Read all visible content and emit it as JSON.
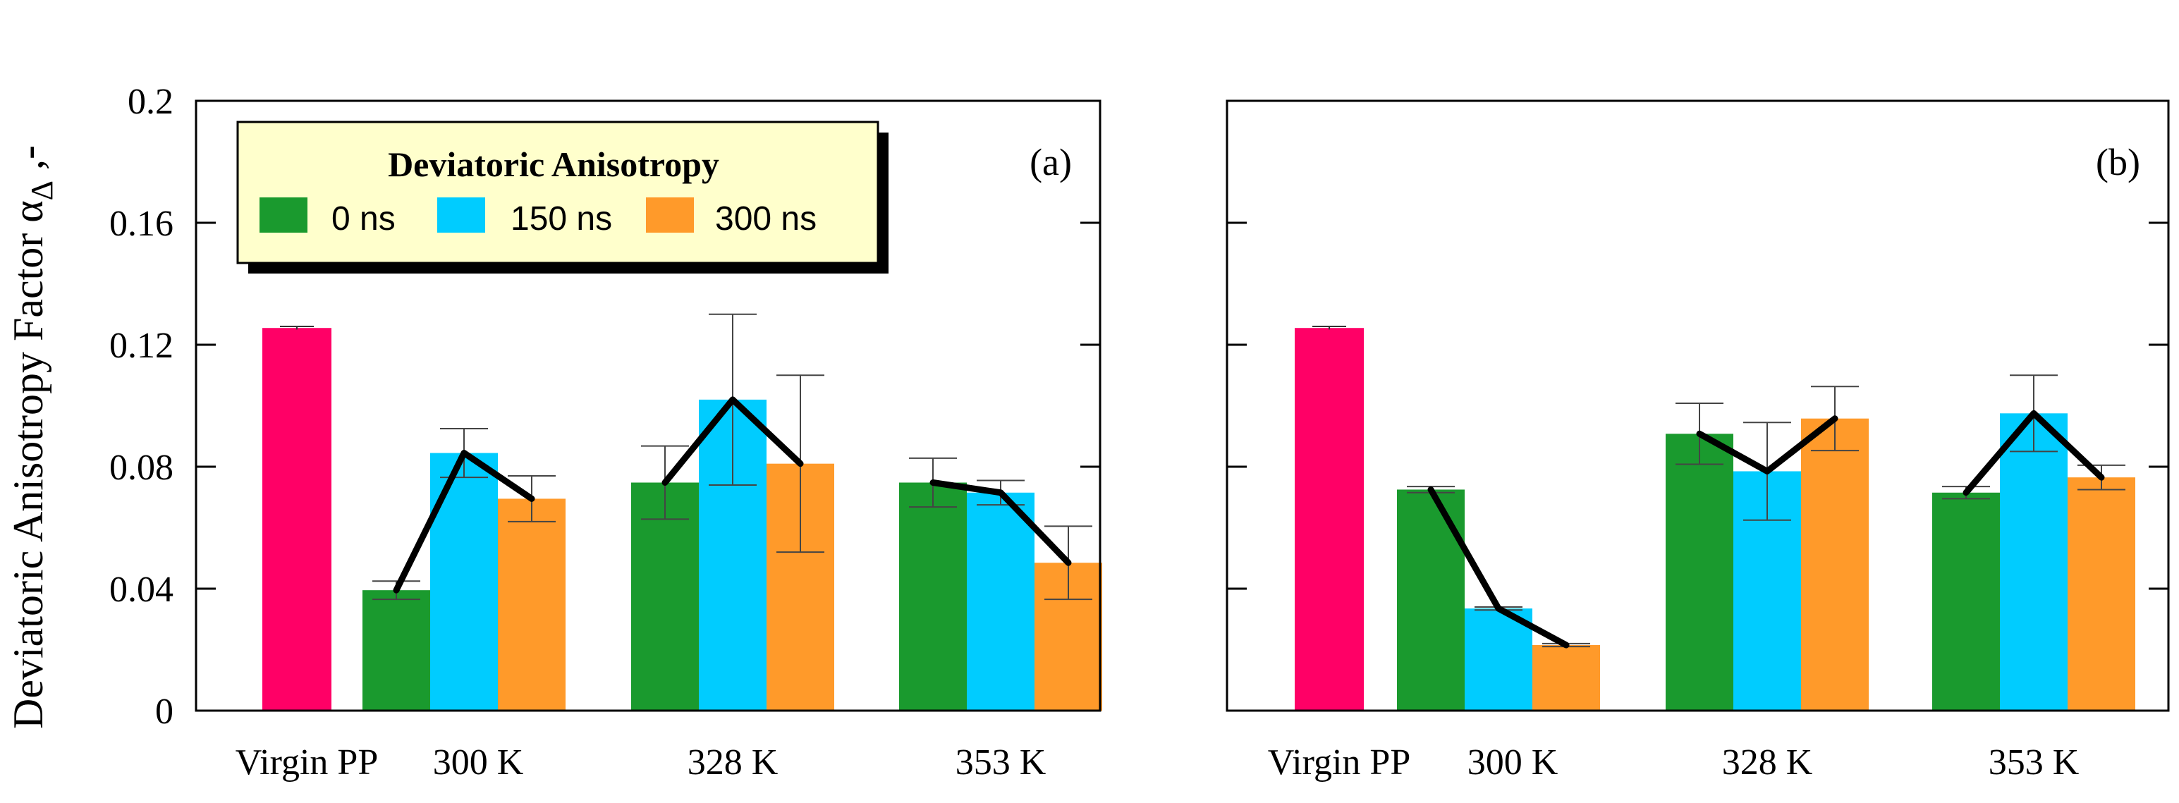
{
  "ylabel": "Deviatoric Anisotropy Factor α",
  "ylabel_subscript": "Δ",
  "ylabel_suffix": " ,-",
  "legend": {
    "title": "Deviatoric Anisotropy",
    "entries": [
      "0 ns",
      "150 ns",
      "300 ns"
    ]
  },
  "colors": {
    "virgin": "#ff0066",
    "series": [
      "#1a9a2e",
      "#00ccff",
      "#ff9a2a"
    ],
    "legend_bg": "#ffffcc",
    "frame": "#000000"
  },
  "chart_data": [
    {
      "type": "bar",
      "panel_label": "(a)",
      "ylim": [
        0,
        0.2
      ],
      "yticks": [
        0,
        0.04,
        0.08,
        0.12,
        0.16,
        0.2
      ],
      "ytick_labels": [
        "0",
        "0.04",
        "0.08",
        "0.12",
        "0.16",
        "0.2"
      ],
      "virgin": {
        "label": "Virgin PP",
        "value": 0.1255,
        "error": 0.0005
      },
      "categories": [
        "300 K",
        "328 K",
        "353 K"
      ],
      "series": [
        {
          "name": "0 ns",
          "values": [
            0.0395,
            0.0748,
            0.0748
          ],
          "errors": [
            0.003,
            0.012,
            0.008
          ]
        },
        {
          "name": "150 ns",
          "values": [
            0.0845,
            0.102,
            0.0715
          ],
          "errors": [
            0.008,
            0.028,
            0.004
          ]
        },
        {
          "name": "300 ns",
          "values": [
            0.0695,
            0.081,
            0.0485
          ],
          "errors": [
            0.0075,
            0.029,
            0.012
          ]
        }
      ]
    },
    {
      "type": "bar",
      "panel_label": "(b)",
      "ylim": [
        0,
        0.2
      ],
      "yticks": [
        0,
        0.04,
        0.08,
        0.12,
        0.16,
        0.2
      ],
      "virgin": {
        "label": "Virgin PP",
        "value": 0.1255,
        "error": 0.0005
      },
      "categories": [
        "300 K",
        "328 K",
        "353 K"
      ],
      "series": [
        {
          "name": "0 ns",
          "values": [
            0.0725,
            0.0908,
            0.0715
          ],
          "errors": [
            0.001,
            0.01,
            0.002
          ]
        },
        {
          "name": "150 ns",
          "values": [
            0.0335,
            0.0785,
            0.0975
          ],
          "errors": [
            0.0005,
            0.016,
            0.0125
          ]
        },
        {
          "name": "300 ns",
          "values": [
            0.0215,
            0.0958,
            0.0765
          ],
          "errors": [
            0.0005,
            0.0105,
            0.004
          ]
        }
      ]
    }
  ]
}
